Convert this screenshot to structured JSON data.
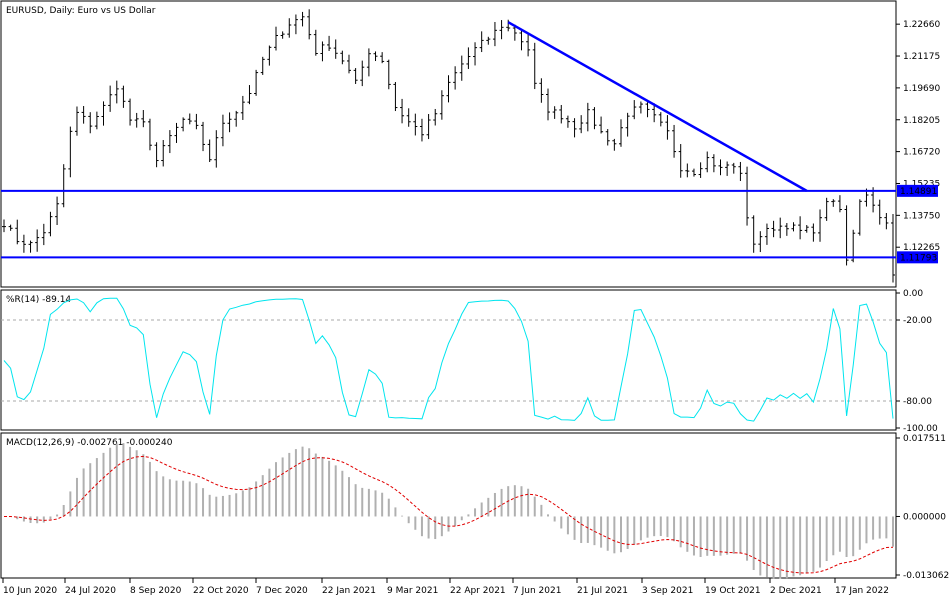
{
  "colors": {
    "background": "#ffffff",
    "frame": "#000000",
    "bars": "#000000",
    "hline": "#0000ff",
    "trendline": "#0000ff",
    "wpr_line": "#00e5ee",
    "level_line": "#a9a9a9",
    "macd_hist": "#b0b0b0",
    "macd_signal": "#e00000",
    "price_tag_bg": "#0000ff",
    "price_tag_text": "#ffffff"
  },
  "chart_data": [
    {
      "type": "ohlc",
      "title": "EURUSD, Daily: Euro vs US Dollar",
      "x_labels": [
        "10 Jun 2020",
        "24 Jul 2020",
        "8 Sep 2020",
        "22 Oct 2020",
        "7 Dec 2020",
        "22 Jan 2021",
        "9 Mar 2021",
        "22 Apr 2021",
        "7 Jun 2021",
        "21 Jul 2021",
        "3 Sep 2021",
        "19 Oct 2021",
        "2 Dec 2021",
        "17 Jan 2022"
      ],
      "y_ticks": [
        "1.22660",
        "1.21175",
        "1.19690",
        "1.18205",
        "1.16720",
        "1.15235",
        "1.13750",
        "1.12265"
      ],
      "ylim": [
        1.1055,
        1.236
      ],
      "horizontal_lines": [
        1.14891,
        1.11793
      ],
      "price_tags": [
        "1.14891",
        "1.11793"
      ],
      "trendline": [
        {
          "x": 76,
          "y": 1.2275
        },
        {
          "x": 121,
          "y": 1.1489
        }
      ],
      "close_anchors": [
        [
          0,
          1.134
        ],
        [
          2,
          1.126
        ],
        [
          4,
          1.124
        ],
        [
          6,
          1.13
        ],
        [
          8,
          1.142
        ],
        [
          10,
          1.176
        ],
        [
          11,
          1.185
        ],
        [
          13,
          1.18
        ],
        [
          15,
          1.188
        ],
        [
          17,
          1.198
        ],
        [
          19,
          1.182
        ],
        [
          21,
          1.18
        ],
        [
          23,
          1.163
        ],
        [
          25,
          1.174
        ],
        [
          27,
          1.182
        ],
        [
          29,
          1.178
        ],
        [
          31,
          1.164
        ],
        [
          33,
          1.181
        ],
        [
          35,
          1.186
        ],
        [
          37,
          1.195
        ],
        [
          39,
          1.21
        ],
        [
          41,
          1.22
        ],
        [
          43,
          1.227
        ],
        [
          45,
          1.23
        ],
        [
          47,
          1.214
        ],
        [
          49,
          1.217
        ],
        [
          51,
          1.21
        ],
        [
          53,
          1.199
        ],
        [
          55,
          1.214
        ],
        [
          57,
          1.21
        ],
        [
          59,
          1.188
        ],
        [
          61,
          1.181
        ],
        [
          63,
          1.176
        ],
        [
          65,
          1.185
        ],
        [
          67,
          1.199
        ],
        [
          69,
          1.208
        ],
        [
          71,
          1.215
        ],
        [
          73,
          1.22
        ],
        [
          75,
          1.226
        ],
        [
          77,
          1.223
        ],
        [
          79,
          1.215
        ],
        [
          80,
          1.198
        ],
        [
          82,
          1.187
        ],
        [
          84,
          1.184
        ],
        [
          86,
          1.179
        ],
        [
          88,
          1.185
        ],
        [
          90,
          1.176
        ],
        [
          92,
          1.171
        ],
        [
          94,
          1.185
        ],
        [
          96,
          1.188
        ],
        [
          98,
          1.183
        ],
        [
          100,
          1.176
        ],
        [
          102,
          1.16
        ],
        [
          104,
          1.158
        ],
        [
          106,
          1.164
        ],
        [
          108,
          1.159
        ],
        [
          109,
          1.161
        ],
        [
          111,
          1.158
        ],
        [
          112,
          1.135
        ],
        [
          113,
          1.125
        ],
        [
          114,
          1.128
        ],
        [
          116,
          1.132
        ],
        [
          118,
          1.133
        ],
        [
          120,
          1.13
        ],
        [
          122,
          1.131
        ],
        [
          123,
          1.135
        ],
        [
          124,
          1.145
        ],
        [
          126,
          1.14
        ],
        [
          127,
          1.116
        ],
        [
          128,
          1.13
        ],
        [
          129,
          1.145
        ],
        [
          130,
          1.148
        ],
        [
          131,
          1.142
        ],
        [
          132,
          1.138
        ],
        [
          133,
          1.133
        ],
        [
          134,
          1.109
        ]
      ],
      "n_bars": 135
    },
    {
      "type": "line",
      "title": "%R(14) -89.14",
      "ylim": [
        -100,
        0
      ],
      "y_ticks": [
        "0.00",
        "-20.00",
        "-80.00",
        "-100.00"
      ],
      "levels": [
        -20,
        -80
      ]
    },
    {
      "type": "bar+line",
      "title": "MACD(12,26,9) -0.002761 -0.000240",
      "ylim": [
        -0.013062,
        0.017511
      ],
      "y_ticks": [
        "0.017511",
        "0.000000",
        "-0.013062"
      ]
    }
  ]
}
